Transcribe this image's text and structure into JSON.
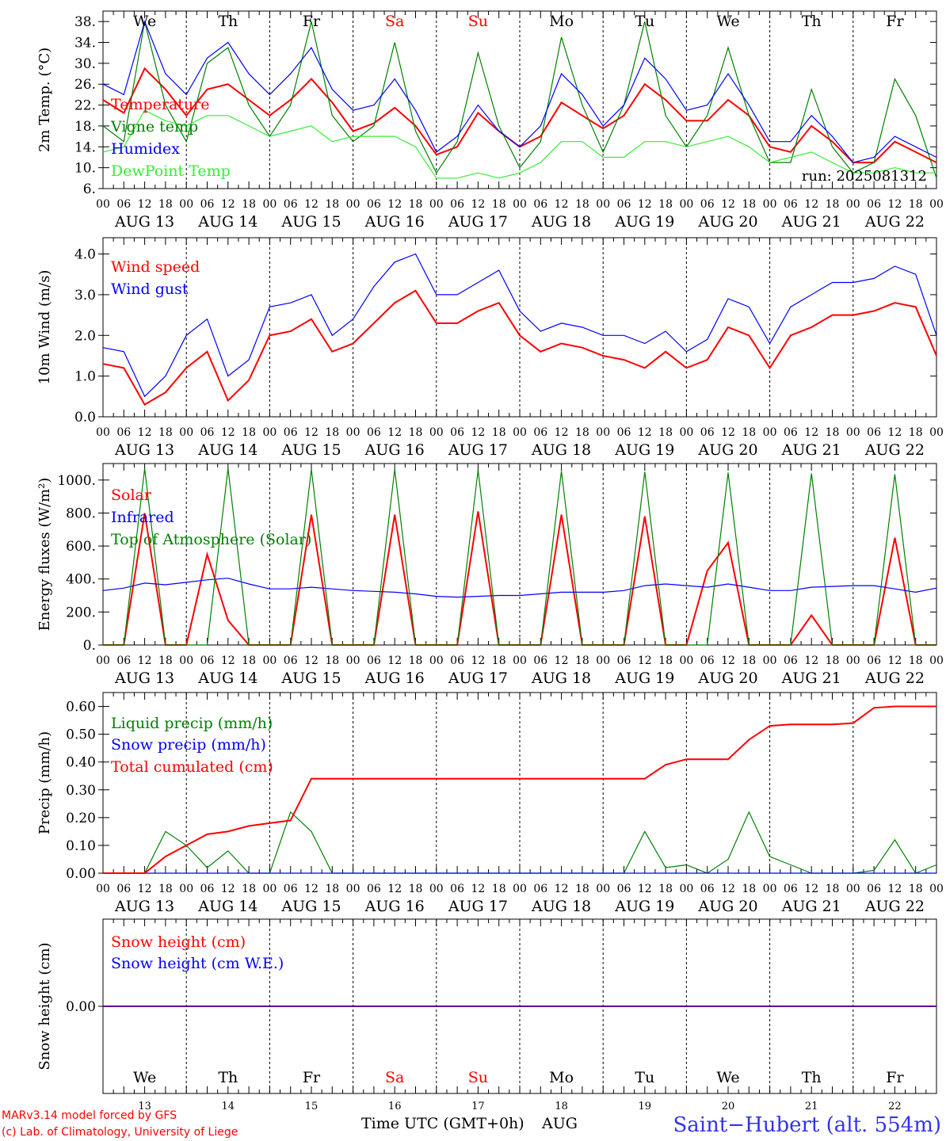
{
  "run_label": "run: 2025081312",
  "station": "Saint−Hubert (alt. 554m)",
  "credits": [
    "MARv3.14 model forced by GFS",
    "(c) Lab. of Climatology, University of Liege"
  ],
  "x_title": "Time UTC (GMT+0h)",
  "month": "AUG",
  "hour_ticks": [
    "00",
    "06",
    "12",
    "18"
  ],
  "final_tick": "00",
  "days": [
    {
      "dow": "We",
      "date": "AUG 13",
      "num": "13",
      "weekend": false
    },
    {
      "dow": "Th",
      "date": "AUG 14",
      "num": "14",
      "weekend": false
    },
    {
      "dow": "Fr",
      "date": "AUG 15",
      "num": "15",
      "weekend": false
    },
    {
      "dow": "Sa",
      "date": "AUG 16",
      "num": "16",
      "weekend": true
    },
    {
      "dow": "Su",
      "date": "AUG 17",
      "num": "17",
      "weekend": true
    },
    {
      "dow": "Mo",
      "date": "AUG 18",
      "num": "18",
      "weekend": false
    },
    {
      "dow": "Tu",
      "date": "AUG 19",
      "num": "19",
      "weekend": false
    },
    {
      "dow": "We",
      "date": "AUG 20",
      "num": "20",
      "weekend": false
    },
    {
      "dow": "Th",
      "date": "AUG 21",
      "num": "21",
      "weekend": false
    },
    {
      "dow": "Fr",
      "date": "AUG 22",
      "num": "22",
      "weekend": false
    }
  ],
  "colors": {
    "red": "#ff0000",
    "green": "#008000",
    "blue": "#0000ff",
    "lightgreen": "#33ee33",
    "weekend": "#ff0000",
    "station": "#3333ee",
    "credits": "#ff0000"
  },
  "chart_data": [
    {
      "type": "line",
      "ylabel": "2m Temp. (°C)",
      "ylim": [
        6,
        40
      ],
      "yticks": [
        "6.",
        "10.",
        "14.",
        "18.",
        "22.",
        "26.",
        "30.",
        "34.",
        "38."
      ],
      "ytick_values": [
        6,
        10,
        14,
        18,
        22,
        26,
        30,
        34,
        38
      ],
      "x_hours": [
        0,
        6,
        12,
        18,
        24,
        30,
        36,
        42,
        48,
        54,
        60,
        66,
        72,
        78,
        84,
        90,
        96,
        102,
        108,
        114,
        120,
        126,
        132,
        138,
        144,
        150,
        156,
        162,
        168,
        174,
        180,
        186,
        192,
        198,
        204,
        210,
        216,
        222,
        228,
        234,
        240
      ],
      "series": [
        {
          "name": "Temperature",
          "color": "red",
          "values": [
            23,
            20.5,
            29,
            25,
            20,
            25,
            26,
            23,
            20,
            23,
            27,
            22.5,
            17,
            18.5,
            21.5,
            18,
            12.5,
            14,
            20.5,
            17,
            14,
            16,
            22.5,
            20,
            17.5,
            20,
            26,
            23,
            19,
            19,
            23,
            20,
            14,
            13,
            18,
            15,
            11,
            11,
            15,
            13,
            11
          ]
        },
        {
          "name": "Vigne temp",
          "color": "green",
          "values": [
            18,
            15,
            38,
            22,
            15,
            30,
            33,
            22,
            16,
            22,
            38,
            20,
            15,
            18,
            34,
            17,
            9,
            15,
            32,
            18,
            10,
            15,
            35,
            22,
            13,
            22,
            38,
            20,
            14,
            20,
            33,
            20,
            11,
            11,
            25,
            14,
            9,
            11,
            27,
            20,
            8
          ]
        },
        {
          "name": "Humidex",
          "color": "blue",
          "values": [
            26,
            24,
            38,
            28,
            24,
            31,
            34,
            28,
            24,
            28,
            33,
            25,
            21,
            22,
            27,
            21,
            13,
            16,
            22,
            17,
            14,
            18,
            28,
            24,
            18,
            22,
            31,
            27,
            21,
            22,
            28,
            22,
            15,
            15,
            20,
            16,
            11,
            12,
            16,
            14,
            12
          ]
        },
        {
          "name": "DewPoint Temp",
          "color": "lightgreen",
          "values": [
            13,
            14,
            21,
            19,
            18,
            20,
            20,
            18,
            16,
            17,
            18,
            15,
            16,
            16,
            16,
            14,
            8,
            8,
            9,
            8,
            9,
            11,
            15,
            15,
            12,
            12,
            15,
            15,
            14,
            15,
            16,
            14,
            11,
            12,
            13,
            11,
            9,
            9,
            10,
            9,
            9
          ]
        }
      ]
    },
    {
      "type": "line",
      "ylabel": "10m Wind (m/s)",
      "ylim": [
        0,
        4.4
      ],
      "yticks": [
        "0.0",
        "1.0",
        "2.0",
        "3.0",
        "4.0"
      ],
      "ytick_values": [
        0,
        1,
        2,
        3,
        4
      ],
      "x_hours": [
        0,
        6,
        12,
        18,
        24,
        30,
        36,
        42,
        48,
        54,
        60,
        66,
        72,
        78,
        84,
        90,
        96,
        102,
        108,
        114,
        120,
        126,
        132,
        138,
        144,
        150,
        156,
        162,
        168,
        174,
        180,
        186,
        192,
        198,
        204,
        210,
        216,
        222,
        228,
        234,
        240
      ],
      "series": [
        {
          "name": "Wind speed",
          "color": "red",
          "values": [
            1.3,
            1.2,
            0.3,
            0.6,
            1.2,
            1.6,
            0.4,
            0.9,
            2.0,
            2.1,
            2.4,
            1.6,
            1.8,
            2.3,
            2.8,
            3.1,
            2.3,
            2.3,
            2.6,
            2.8,
            2.0,
            1.6,
            1.8,
            1.7,
            1.5,
            1.4,
            1.2,
            1.6,
            1.2,
            1.4,
            2.2,
            2.0,
            1.2,
            2.0,
            2.2,
            2.5,
            2.5,
            2.6,
            2.8,
            2.7,
            1.5
          ]
        },
        {
          "name": "Wind gust",
          "color": "blue",
          "values": [
            1.7,
            1.6,
            0.5,
            1.0,
            2.0,
            2.4,
            1.0,
            1.4,
            2.7,
            2.8,
            3.0,
            2.0,
            2.4,
            3.2,
            3.8,
            4.0,
            3.0,
            3.0,
            3.3,
            3.6,
            2.6,
            2.1,
            2.3,
            2.2,
            2.0,
            2.0,
            1.8,
            2.1,
            1.6,
            1.9,
            2.9,
            2.7,
            1.8,
            2.7,
            3.0,
            3.3,
            3.3,
            3.4,
            3.7,
            3.5,
            2.0
          ]
        }
      ]
    },
    {
      "type": "line",
      "ylabel": "Energy fluxes (W/m²)",
      "ylim": [
        0,
        1100
      ],
      "yticks": [
        "0.",
        "200.",
        "400.",
        "600.",
        "800.",
        "1000."
      ],
      "ytick_values": [
        0,
        200,
        400,
        600,
        800,
        1000
      ],
      "x_hours": [
        0,
        6,
        12,
        18,
        24,
        30,
        36,
        42,
        48,
        54,
        60,
        66,
        72,
        78,
        84,
        90,
        96,
        102,
        108,
        114,
        120,
        126,
        132,
        138,
        144,
        150,
        156,
        162,
        168,
        174,
        180,
        186,
        192,
        198,
        204,
        210,
        216,
        222,
        228,
        234,
        240
      ],
      "series": [
        {
          "name": "Solar",
          "color": "red",
          "values": [
            0,
            0,
            800,
            0,
            0,
            550,
            150,
            0,
            0,
            0,
            790,
            0,
            0,
            0,
            790,
            0,
            0,
            0,
            810,
            0,
            0,
            0,
            790,
            0,
            0,
            0,
            780,
            0,
            0,
            450,
            620,
            0,
            0,
            0,
            180,
            0,
            0,
            0,
            650,
            0,
            0
          ]
        },
        {
          "name": "Infrared",
          "color": "blue",
          "values": [
            330,
            345,
            375,
            365,
            380,
            395,
            405,
            370,
            340,
            340,
            350,
            340,
            330,
            325,
            320,
            310,
            295,
            290,
            295,
            300,
            300,
            310,
            320,
            320,
            320,
            330,
            360,
            370,
            360,
            350,
            370,
            350,
            330,
            330,
            350,
            355,
            360,
            360,
            340,
            320,
            345
          ]
        },
        {
          "name": "Top of Atmosphere (Solar)",
          "color": "green",
          "values": [
            0,
            0,
            1070,
            0,
            0,
            0,
            1070,
            0,
            0,
            0,
            1065,
            0,
            0,
            0,
            1065,
            0,
            0,
            0,
            1060,
            0,
            0,
            0,
            1055,
            0,
            0,
            0,
            1050,
            0,
            0,
            0,
            1045,
            0,
            0,
            0,
            1040,
            0,
            0,
            0,
            1035,
            0,
            0
          ]
        }
      ]
    },
    {
      "type": "line",
      "ylabel": "Precip (mm/h)",
      "ylim": [
        0,
        0.65
      ],
      "yticks": [
        "0.00",
        "0.10",
        "0.20",
        "0.30",
        "0.40",
        "0.50",
        "0.60"
      ],
      "ytick_values": [
        0,
        0.1,
        0.2,
        0.3,
        0.4,
        0.5,
        0.6
      ],
      "x_hours": [
        0,
        6,
        12,
        18,
        24,
        30,
        36,
        42,
        48,
        54,
        60,
        66,
        72,
        78,
        84,
        90,
        96,
        102,
        108,
        114,
        120,
        126,
        132,
        138,
        144,
        150,
        156,
        162,
        168,
        174,
        180,
        186,
        192,
        198,
        204,
        210,
        216,
        222,
        228,
        234,
        240
      ],
      "series": [
        {
          "name": "Liquid precip (mm/h)",
          "color": "green",
          "values": [
            0,
            0,
            0,
            0.15,
            0.1,
            0.02,
            0.08,
            0,
            0,
            0.22,
            0.15,
            0,
            0,
            0,
            0,
            0,
            0,
            0,
            0,
            0,
            0,
            0,
            0,
            0,
            0,
            0,
            0.15,
            0.02,
            0.03,
            0,
            0.05,
            0.22,
            0.06,
            0.03,
            0,
            0,
            0,
            0.01,
            0.12,
            0,
            0.03
          ]
        },
        {
          "name": "Snow precip (mm/h)",
          "color": "blue",
          "values": [
            0,
            0,
            0,
            0,
            0,
            0,
            0,
            0,
            0,
            0,
            0,
            0,
            0,
            0,
            0,
            0,
            0,
            0,
            0,
            0,
            0,
            0,
            0,
            0,
            0,
            0,
            0,
            0,
            0,
            0,
            0,
            0,
            0,
            0,
            0,
            0,
            0,
            0,
            0,
            0,
            0
          ]
        },
        {
          "name": "Total cumulated (cm)",
          "color": "red",
          "values": [
            0,
            0,
            0,
            0.06,
            0.1,
            0.14,
            0.15,
            0.17,
            0.18,
            0.19,
            0.34,
            0.34,
            0.34,
            0.34,
            0.34,
            0.34,
            0.34,
            0.34,
            0.34,
            0.34,
            0.34,
            0.34,
            0.34,
            0.34,
            0.34,
            0.34,
            0.34,
            0.39,
            0.41,
            0.41,
            0.41,
            0.48,
            0.53,
            0.535,
            0.535,
            0.535,
            0.54,
            0.595,
            0.6,
            0.6,
            0.6
          ]
        }
      ]
    },
    {
      "type": "line",
      "ylabel": "Snow height (cm)",
      "ylim": [
        -1,
        1
      ],
      "yticks": [
        "0.00"
      ],
      "ytick_values": [
        0
      ],
      "x_hours": [
        0,
        240
      ],
      "series": [
        {
          "name": "Snow height (cm)",
          "color": "red",
          "values": [
            0,
            0
          ]
        },
        {
          "name": "Snow height (cm W.E.)",
          "color": "blue",
          "values": [
            0,
            0
          ]
        }
      ]
    }
  ]
}
